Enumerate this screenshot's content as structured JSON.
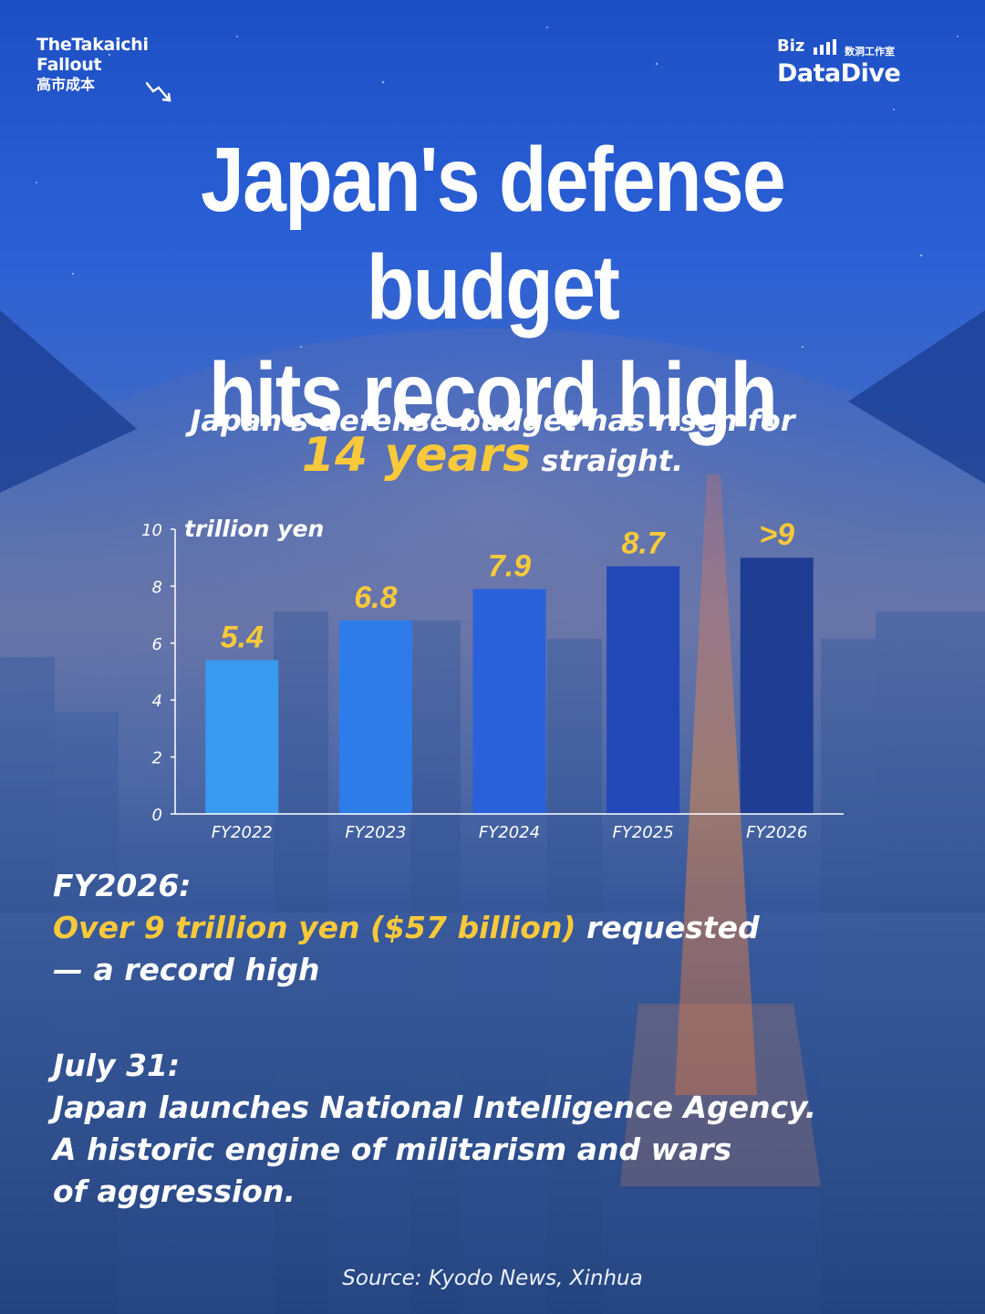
{
  "brand": {
    "left_line1": "TheTakaichi",
    "left_line2": "Fallout",
    "left_line3": "高市成本",
    "right_line1": "Biz",
    "right_cn": "数洞工作室",
    "right_line2": "DataDive"
  },
  "headline": {
    "line1": "Japan's defense budget",
    "line2": "hits record high"
  },
  "subtitle": {
    "line1": "Japan's defense budget has risen for",
    "highlight": "14 years",
    "tail": "straight."
  },
  "chart_data": {
    "type": "bar",
    "unit_label": "trillion yen",
    "categories": [
      "FY2022",
      "FY2023",
      "FY2024",
      "FY2025",
      "FY2026"
    ],
    "values": [
      5.4,
      6.8,
      7.9,
      8.7,
      9
    ],
    "value_labels": [
      "5.4",
      "6.8",
      "7.9",
      "8.7",
      ">9"
    ],
    "yticks": [
      0,
      2,
      4,
      6,
      8,
      10
    ],
    "ylim": [
      0,
      10
    ],
    "bar_colors": [
      "#3a9af0",
      "#2e7cea",
      "#2a61db",
      "#2248b8",
      "#1e3d93"
    ],
    "label_color": "#f8c93a",
    "grid": false
  },
  "fact1": {
    "heading": "FY2026:",
    "highlight": "Over 9 trillion yen ($57 billion)",
    "rest": " requested",
    "line3": "— a record high"
  },
  "fact2": {
    "heading": "July 31:",
    "line1": "Japan launches National Intelligence Agency.",
    "line2": "A historic engine of militarism and wars",
    "line3": "of aggression."
  },
  "source": "Source: Kyodo News, Xinhua",
  "colors": {
    "accent": "#f8c93a",
    "background_top": "#1d4fc4",
    "background_bottom": "#2b4f93"
  }
}
